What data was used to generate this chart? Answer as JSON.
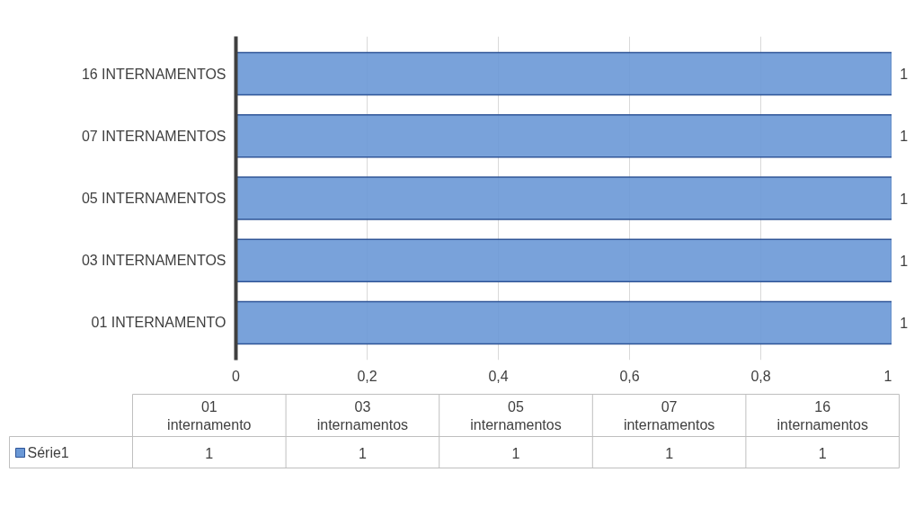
{
  "chart_data": {
    "type": "bar",
    "orientation": "horizontal",
    "categories": [
      "16 INTERNAMENTOS",
      "07 INTERNAMENTOS",
      "05 INTERNAMENTOS",
      "03 INTERNAMENTOS",
      "01 INTERNAMENTO"
    ],
    "series": [
      {
        "name": "Série1",
        "color": "#6a98d6",
        "values": [
          1,
          1,
          1,
          1,
          1
        ]
      }
    ],
    "xlim": [
      0,
      1
    ],
    "xticks": [
      0,
      {
        "value": 0.2,
        "label": "0,2"
      },
      {
        "value": 0.4,
        "label": "0,4"
      },
      {
        "value": 0.6,
        "label": "0,6"
      },
      {
        "value": 0.8,
        "label": "0,8"
      },
      1
    ],
    "grid": "x",
    "data_labels": true,
    "legend": "bottom",
    "annotations": [
      "01 internamento",
      "03 internamentos",
      "05 internamentos",
      "07 internamentos",
      "16 internamentos",
      "1",
      "1",
      "1",
      "1",
      "1"
    ]
  }
}
